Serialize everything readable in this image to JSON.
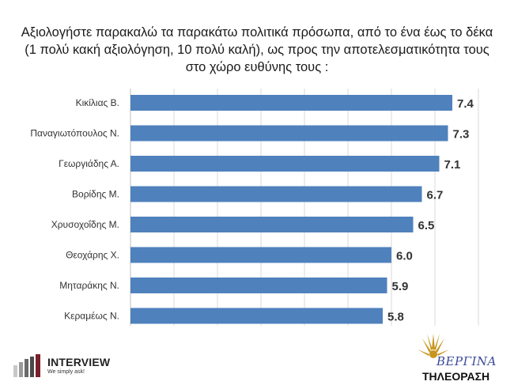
{
  "title_lines": [
    "Αξιολογήστε παρακαλώ τα παρακάτω πολιτικά πρόσωπα, από το ένα έως το δέκα",
    "(1 πολύ κακή αξιολόγηση, 10 πολύ καλή), ως προς την αποτελεσματικότητα τους",
    "στο χώρο ευθύνης τους :"
  ],
  "chart_data": {
    "type": "bar",
    "orientation": "horizontal",
    "categories": [
      "Κικίλιας Β.",
      "Παναγιωτόπουλος Ν.",
      "Γεωργιάδης Α.",
      "Βορίδης Μ.",
      "Χρυσοχοΐδης Μ.",
      "Θεοχάρης Χ.",
      "Μηταράκης Ν.",
      "Κεραμέως Ν."
    ],
    "values": [
      7.4,
      7.3,
      7.1,
      6.7,
      6.5,
      6.0,
      5.9,
      5.8
    ],
    "value_labels": [
      "7.4",
      "7.3",
      "7.1",
      "6.7",
      "6.5",
      "6.0",
      "5.9",
      "5.8"
    ],
    "xlim": [
      0,
      8
    ],
    "grid": true,
    "bar_color": "#4f81bd"
  },
  "logos": {
    "left_name": "INTERVIEW",
    "left_tagline": "We simply ask!",
    "right_top": "ΒΕΡΓΙΝΑ",
    "right_bottom": "ΤΗΛΕΟΡΑΣΗ"
  },
  "colors": {
    "bar": "#4f81bd",
    "interview_dark": "#7a1f2b",
    "vergina_gold": "#c8951e",
    "vergina_blue": "#3a4a9a"
  }
}
